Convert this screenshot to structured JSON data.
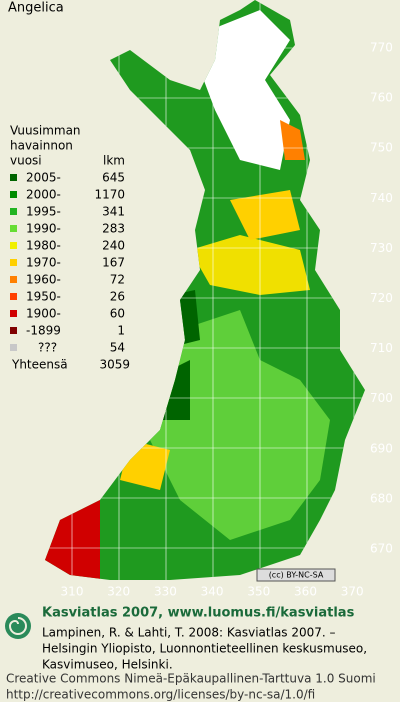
{
  "header": {
    "title": "Angelica"
  },
  "legend": {
    "heading": [
      "Vuusimman",
      "havainnon"
    ],
    "column_year": "vuosi",
    "column_count": "lkm",
    "rows": [
      [
        "2005-",
        "645"
      ],
      [
        "2000-",
        "1170"
      ],
      [
        "1995-",
        "341"
      ],
      [
        "1990-",
        "283"
      ],
      [
        "1980-",
        "240"
      ],
      [
        "1970-",
        "167"
      ],
      [
        "1960-",
        "72"
      ],
      [
        "1950-",
        "26"
      ],
      [
        "1900-",
        "60"
      ],
      [
        "-1899",
        "1"
      ],
      [
        "???",
        "54"
      ]
    ],
    "colors": [
      "#006400",
      "#008c00",
      "#22b422",
      "#66dd33",
      "#f0f000",
      "#ffd000",
      "#ff8000",
      "#ff4000",
      "#d00000",
      "#800000",
      "#c8c8c8"
    ],
    "total_label": "Yhteensä",
    "total": "3059"
  },
  "axes": {
    "right": [
      "770",
      "760",
      "750",
      "740",
      "730",
      "720",
      "710",
      "700",
      "690",
      "680",
      "670"
    ],
    "bottom": [
      "310",
      "320",
      "330",
      "340",
      "350",
      "360",
      "370"
    ]
  },
  "badge": "(cc) BY-NC-SA",
  "footer": {
    "title": "Kasviatlas 2007, www.luomus.fi/kasviatlas",
    "citation": [
      "Lampinen, R. & Lahti, T. 2008: Kasviatlas 2007. –",
      "Helsingin Yliopisto, Luonnontieteellinen keskusmuseo,",
      "Kasvimuseo, Helsinki."
    ],
    "license": [
      "Creative Commons Nimeä-Epäkaupallinen-Tarttuva 1.0 Suomi",
      "http://creativecommons.org/licenses/by-nc-sa/1.0/fi"
    ]
  }
}
